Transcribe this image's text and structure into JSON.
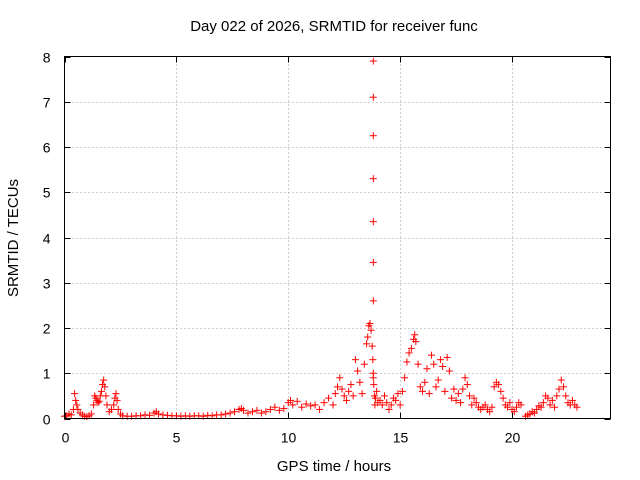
{
  "chart_data": {
    "type": "scatter",
    "title": "Day 022 of 2026, SRMTID for receiver func",
    "xlabel": "GPS time / hours",
    "ylabel": "SRMTID / TECUs",
    "xlim": [
      0,
      24.4
    ],
    "ylim": [
      0,
      8
    ],
    "xticks": [
      0,
      5,
      10,
      15,
      20
    ],
    "yticks": [
      0,
      1,
      2,
      3,
      4,
      5,
      6,
      7,
      8
    ],
    "xtick_labels": [
      "0",
      "5",
      "10",
      "15",
      "20"
    ],
    "ytick_labels": [
      "0",
      "1",
      "2",
      "3",
      "4",
      "5",
      "6",
      "7",
      "8"
    ],
    "grid": true,
    "marker": "+",
    "color": "#ff0000",
    "series": [
      {
        "name": "SRMTID",
        "x": [
          0.0,
          0.1,
          0.2,
          0.3,
          0.4,
          0.45,
          0.5,
          0.55,
          0.6,
          0.7,
          0.8,
          0.9,
          1.0,
          1.1,
          1.2,
          1.3,
          1.35,
          1.4,
          1.45,
          1.5,
          1.55,
          1.6,
          1.65,
          1.7,
          1.75,
          1.8,
          1.85,
          1.9,
          2.0,
          2.1,
          2.2,
          2.25,
          2.3,
          2.35,
          2.4,
          2.5,
          2.6,
          2.8,
          3.0,
          3.2,
          3.4,
          3.6,
          3.8,
          4.0,
          4.1,
          4.2,
          4.4,
          4.6,
          4.8,
          5.0,
          5.2,
          5.4,
          5.6,
          5.8,
          6.0,
          6.2,
          6.4,
          6.6,
          6.8,
          7.0,
          7.2,
          7.4,
          7.6,
          7.8,
          7.9,
          8.0,
          8.2,
          8.4,
          8.6,
          8.8,
          9.0,
          9.2,
          9.4,
          9.6,
          9.8,
          10.0,
          10.1,
          10.2,
          10.4,
          10.6,
          10.8,
          11.0,
          11.2,
          11.4,
          11.6,
          11.8,
          12.0,
          12.1,
          12.2,
          12.3,
          12.4,
          12.5,
          12.6,
          12.7,
          12.8,
          12.9,
          13.0,
          13.1,
          13.2,
          13.3,
          13.4,
          13.5,
          13.55,
          13.6,
          13.65,
          13.7,
          13.75,
          13.78,
          13.8,
          13.82,
          13.85,
          13.87,
          13.9,
          13.95,
          14.0,
          14.1,
          14.2,
          14.3,
          14.4,
          14.5,
          14.6,
          14.7,
          14.8,
          14.9,
          15.0,
          15.1,
          15.2,
          15.3,
          15.4,
          15.5,
          15.6,
          15.65,
          15.7,
          15.8,
          15.9,
          16.0,
          16.1,
          16.2,
          16.3,
          16.4,
          16.5,
          16.6,
          16.7,
          16.8,
          16.9,
          17.0,
          17.1,
          17.2,
          17.3,
          17.4,
          17.5,
          17.6,
          17.7,
          17.8,
          17.9,
          18.0,
          18.1,
          18.2,
          18.3,
          18.4,
          18.5,
          18.6,
          18.7,
          18.8,
          18.9,
          19.0,
          19.1,
          19.2,
          19.3,
          19.4,
          19.5,
          19.6,
          19.7,
          19.8,
          19.9,
          20.0,
          20.1,
          20.2,
          20.3,
          20.4,
          20.6,
          20.7,
          20.8,
          20.9,
          21.0,
          21.1,
          21.2,
          21.3,
          21.4,
          21.5,
          21.6,
          21.7,
          21.8,
          21.9,
          22.0,
          22.1,
          22.2,
          22.3,
          22.4,
          22.5,
          22.6,
          22.7,
          22.8,
          22.9,
          13.8,
          13.8,
          13.8,
          13.8,
          13.8,
          13.8,
          13.8,
          13.8
        ],
        "y": [
          0.05,
          0.06,
          0.1,
          0.08,
          0.2,
          0.55,
          0.4,
          0.3,
          0.2,
          0.12,
          0.08,
          0.05,
          0.04,
          0.06,
          0.1,
          0.3,
          0.5,
          0.45,
          0.4,
          0.35,
          0.38,
          0.5,
          0.6,
          0.75,
          0.85,
          0.7,
          0.5,
          0.3,
          0.15,
          0.2,
          0.3,
          0.45,
          0.55,
          0.4,
          0.2,
          0.1,
          0.06,
          0.05,
          0.05,
          0.06,
          0.06,
          0.08,
          0.07,
          0.12,
          0.15,
          0.1,
          0.08,
          0.07,
          0.06,
          0.06,
          0.05,
          0.06,
          0.05,
          0.06,
          0.06,
          0.05,
          0.07,
          0.06,
          0.08,
          0.08,
          0.1,
          0.12,
          0.15,
          0.2,
          0.22,
          0.18,
          0.12,
          0.15,
          0.18,
          0.12,
          0.15,
          0.2,
          0.25,
          0.18,
          0.22,
          0.35,
          0.4,
          0.3,
          0.38,
          0.25,
          0.32,
          0.28,
          0.3,
          0.2,
          0.35,
          0.45,
          0.3,
          0.55,
          0.7,
          0.9,
          0.65,
          0.5,
          0.4,
          0.6,
          0.75,
          0.5,
          1.3,
          1.05,
          0.8,
          0.55,
          1.2,
          1.65,
          1.8,
          2.05,
          2.1,
          1.95,
          1.6,
          1.3,
          1.0,
          0.75,
          0.5,
          0.3,
          0.45,
          0.6,
          0.35,
          0.4,
          0.3,
          0.5,
          0.35,
          0.2,
          0.3,
          0.45,
          0.4,
          0.55,
          0.3,
          0.6,
          0.9,
          1.25,
          1.45,
          1.55,
          1.75,
          1.85,
          1.7,
          1.2,
          0.7,
          0.6,
          0.8,
          1.1,
          0.55,
          1.4,
          1.2,
          0.7,
          0.85,
          1.3,
          1.15,
          0.6,
          1.35,
          1.05,
          0.45,
          0.65,
          0.4,
          0.55,
          0.35,
          0.65,
          0.9,
          0.75,
          0.5,
          0.3,
          0.45,
          0.35,
          0.25,
          0.2,
          0.25,
          0.3,
          0.2,
          0.15,
          0.25,
          0.7,
          0.8,
          0.75,
          0.6,
          0.45,
          0.3,
          0.25,
          0.35,
          0.2,
          0.15,
          0.25,
          0.35,
          0.3,
          0.05,
          0.08,
          0.1,
          0.15,
          0.12,
          0.2,
          0.28,
          0.25,
          0.35,
          0.5,
          0.45,
          0.3,
          0.4,
          0.25,
          0.5,
          0.65,
          0.85,
          0.7,
          0.5,
          0.35,
          0.3,
          0.4,
          0.3,
          0.25,
          2.6,
          3.45,
          4.35,
          5.3,
          6.25,
          7.1,
          7.9,
          0.9
        ]
      }
    ]
  }
}
